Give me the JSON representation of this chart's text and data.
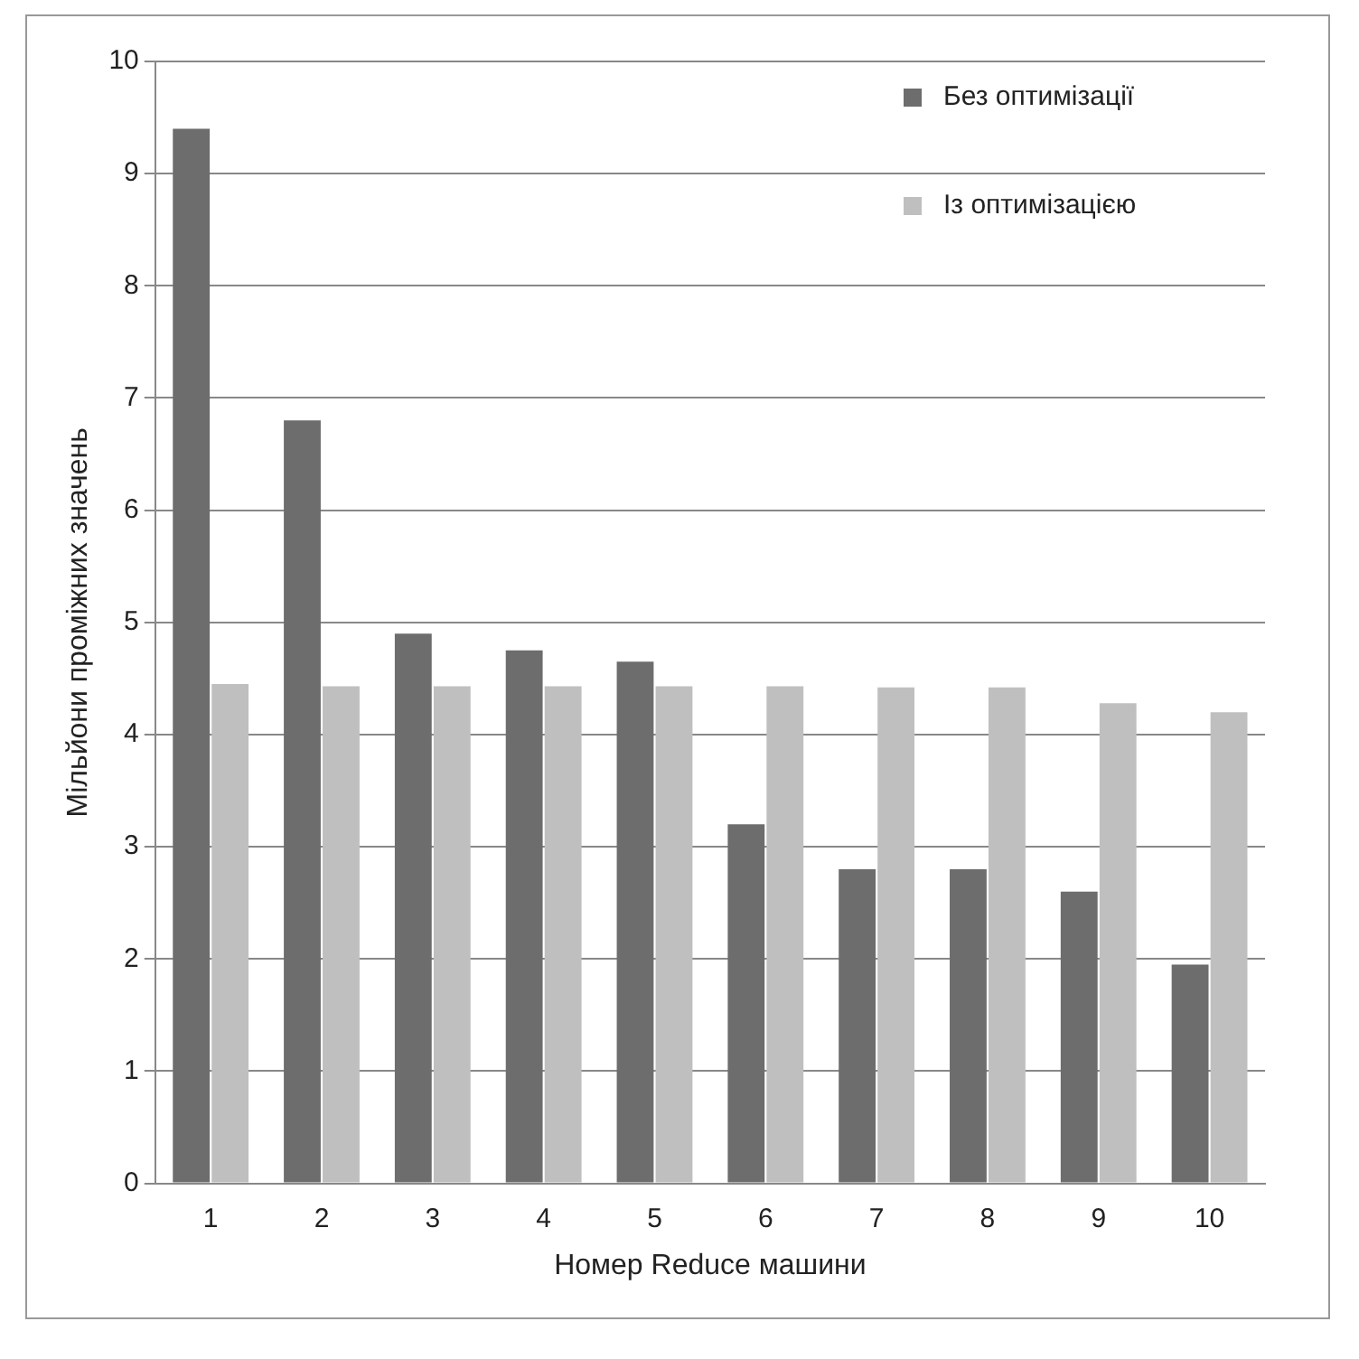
{
  "chart_data": {
    "type": "bar",
    "xlabel": "Номер Reduce машини",
    "ylabel": "Мільйони проміжних значень",
    "categories": [
      "1",
      "2",
      "3",
      "4",
      "5",
      "6",
      "7",
      "8",
      "9",
      "10"
    ],
    "series": [
      {
        "name": "Без оптимізації",
        "color": "#6d6d6d",
        "values": [
          9.4,
          6.8,
          4.9,
          4.75,
          4.65,
          3.2,
          2.8,
          2.8,
          2.6,
          1.95
        ]
      },
      {
        "name": "Із оптимізацією",
        "color": "#bfbfbf",
        "values": [
          4.45,
          4.43,
          4.43,
          4.43,
          4.43,
          4.43,
          4.42,
          4.42,
          4.28,
          4.2
        ]
      }
    ],
    "ylim": [
      0,
      10
    ],
    "yticks": [
      0,
      1,
      2,
      3,
      4,
      5,
      6,
      7,
      8,
      9,
      10
    ],
    "grid": "y",
    "legend": "top right"
  }
}
